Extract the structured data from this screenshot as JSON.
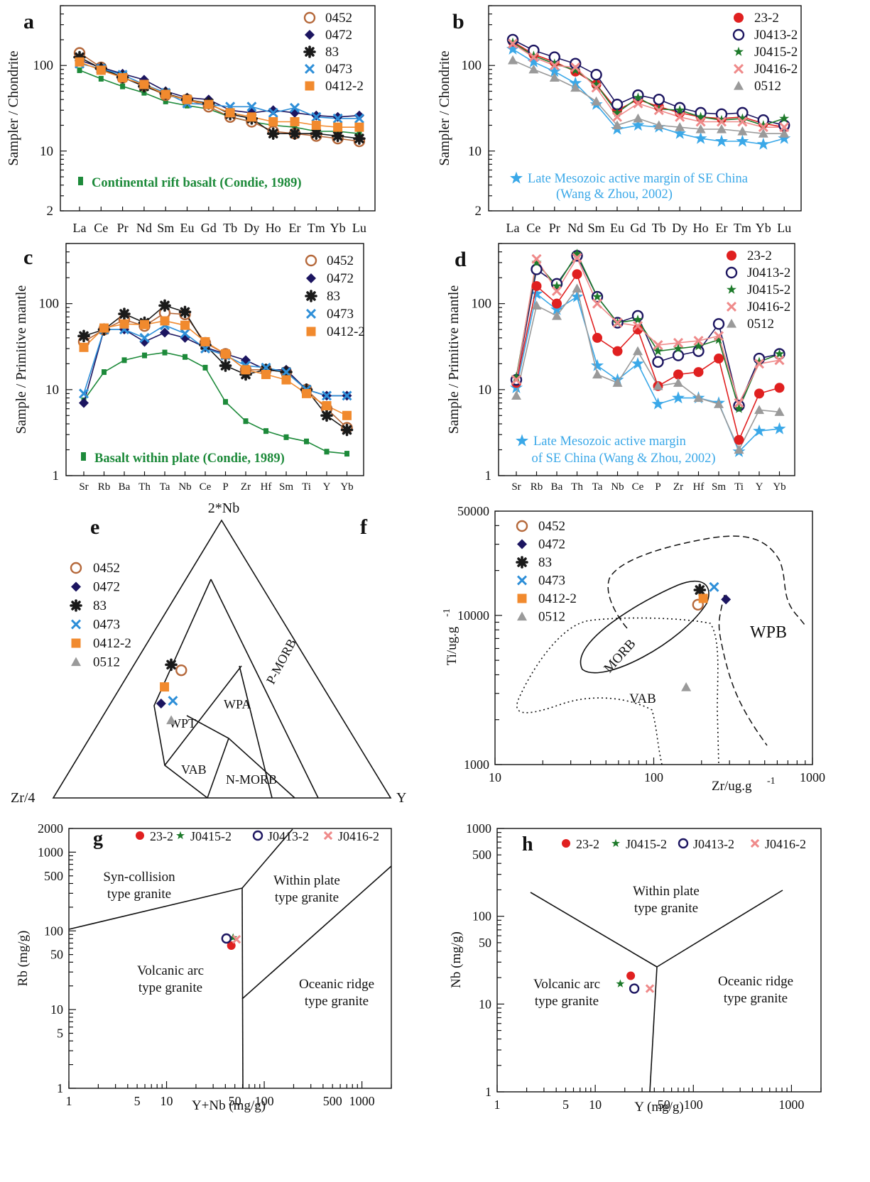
{
  "colors": {
    "s0452": "#b5683a",
    "s0472": "#1c1560",
    "s83": "#1a1a1a",
    "s0473": "#2e8fd8",
    "s0412_2": "#f18a2e",
    "s23_2": "#e02020",
    "sJ0413_2": "#1c1560",
    "sJ0415_2": "#1d7a2a",
    "sJ0416_2": "#ef8a8a",
    "s0512": "#9a9a9a",
    "green_ref": "#1d8a3a",
    "blue_ref": "#3aa8e8"
  },
  "chart_data": [
    {
      "panel": "a",
      "type": "line",
      "log_y": true,
      "ylabel": "Sampler / Chondrite",
      "ylim": [
        2,
        500
      ],
      "yticks": [
        2,
        10,
        100
      ],
      "categories": [
        "La",
        "Ce",
        "Pr",
        "Nd",
        "Sm",
        "Eu",
        "Gd",
        "Tb",
        "Dy",
        "Ho",
        "Er",
        "Tm",
        "Yb",
        "Lu"
      ],
      "series": [
        {
          "name": "0452",
          "marker": "open-circle",
          "color": "#b5683a",
          "values": [
            140,
            95,
            72,
            58,
            45,
            40,
            33,
            25,
            22,
            17,
            16,
            15,
            14,
            13
          ]
        },
        {
          "name": "0472",
          "marker": "diamond",
          "color": "#1c1560",
          "values": [
            115,
            95,
            80,
            68,
            50,
            42,
            40,
            30,
            28,
            30,
            28,
            26,
            25,
            26
          ]
        },
        {
          "name": "83",
          "marker": "burst",
          "color": "#1a1a1a",
          "values": [
            125,
            92,
            73,
            57,
            47,
            40,
            36,
            27,
            24,
            16,
            16,
            16,
            15,
            14
          ]
        },
        {
          "name": "0473",
          "marker": "x",
          "color": "#2e8fd8",
          "values": [
            105,
            92,
            78,
            60,
            48,
            36,
            35,
            33,
            33,
            28,
            32,
            25,
            24,
            24
          ]
        },
        {
          "name": "0412-2",
          "marker": "square",
          "color": "#f18a2e",
          "values": [
            110,
            88,
            72,
            60,
            46,
            40,
            35,
            28,
            25,
            22,
            22,
            20,
            19,
            19
          ]
        }
      ],
      "reference": {
        "name": "Continental rift basalt (Condie, 1989)",
        "color": "#1d8a3a",
        "values": [
          88,
          70,
          57,
          48,
          38,
          34,
          31,
          25,
          22,
          20,
          19,
          17,
          17,
          16
        ]
      }
    },
    {
      "panel": "b",
      "type": "line",
      "log_y": true,
      "ylabel": "Sampler / Chondrite",
      "ylim": [
        2,
        500
      ],
      "yticks": [
        2,
        10,
        100
      ],
      "categories": [
        "La",
        "Ce",
        "Pr",
        "Nd",
        "Sm",
        "Eu",
        "Gd",
        "Tb",
        "Dy",
        "Ho",
        "Er",
        "Tm",
        "Yb",
        "Lu"
      ],
      "series": [
        {
          "name": "23-2",
          "marker": "filled-circle",
          "color": "#e02020",
          "values": [
            190,
            135,
            110,
            85,
            60,
            30,
            40,
            33,
            28,
            25,
            24,
            25,
            21,
            19
          ]
        },
        {
          "name": "J0413-2",
          "marker": "open-circle",
          "color": "#1c1560",
          "values": [
            200,
            150,
            125,
            105,
            78,
            35,
            45,
            40,
            32,
            28,
            27,
            28,
            23,
            20
          ]
        },
        {
          "name": "J0415-2",
          "marker": "star",
          "color": "#1d7a2a",
          "values": [
            185,
            130,
            105,
            88,
            60,
            28,
            42,
            31,
            30,
            25,
            23,
            24,
            20,
            24
          ]
        },
        {
          "name": "J0416-2",
          "marker": "x",
          "color": "#ef8a8a",
          "values": [
            180,
            125,
            100,
            95,
            55,
            25,
            36,
            30,
            25,
            22,
            22,
            22,
            19,
            19
          ]
        },
        {
          "name": "0512",
          "marker": "triangle",
          "color": "#9a9a9a",
          "values": [
            115,
            90,
            72,
            55,
            38,
            20,
            24,
            20,
            19,
            18,
            18,
            17,
            16,
            16
          ]
        }
      ],
      "reference": {
        "name": "Late Mesozoic active margin of SE China",
        "name_line2": "(Wang & Zhou, 2002)",
        "color": "#3aa8e8",
        "values": [
          155,
          110,
          85,
          62,
          35,
          18,
          20,
          19,
          16,
          14,
          13,
          13,
          12,
          14
        ]
      }
    },
    {
      "panel": "c",
      "type": "line",
      "log_y": true,
      "ylabel": "Sample / Primitive mantle",
      "ylim": [
        1,
        500
      ],
      "yticks": [
        1,
        10,
        100
      ],
      "categories": [
        "Sr",
        "Rb",
        "Ba",
        "Th",
        "Ta",
        "Nb",
        "Ce",
        "P",
        "Zr",
        "Hf",
        "Sm",
        "Ti",
        "Y",
        "Yb"
      ],
      "series": [
        {
          "name": "0452",
          "marker": "open-circle",
          "color": "#b5683a",
          "values": [
            36,
            50,
            65,
            55,
            78,
            75,
            35,
            26,
            17,
            17,
            16,
            10,
            6,
            3.6
          ]
        },
        {
          "name": "0472",
          "marker": "diamond",
          "color": "#1c1560",
          "values": [
            7,
            50,
            50,
            36,
            46,
            40,
            31,
            26,
            22,
            17,
            17,
            10,
            8.5,
            8.5
          ]
        },
        {
          "name": "83",
          "marker": "burst",
          "color": "#1a1a1a",
          "values": [
            42,
            50,
            76,
            60,
            95,
            80,
            33,
            19,
            15,
            17,
            16,
            10,
            5,
            3.4
          ]
        },
        {
          "name": "0473",
          "marker": "x",
          "color": "#2e8fd8",
          "values": [
            9,
            50,
            50,
            40,
            56,
            45,
            30,
            25,
            19,
            18,
            16,
            10,
            8.5,
            8.5
          ]
        },
        {
          "name": "0412-2",
          "marker": "square",
          "color": "#f18a2e",
          "values": [
            31,
            52,
            58,
            57,
            63,
            56,
            36,
            26,
            17,
            15,
            13,
            9,
            6.5,
            5
          ]
        }
      ],
      "reference": {
        "name": "Basalt  within plate (Condie, 1989)",
        "color": "#1d8a3a",
        "values": [
          7.5,
          16,
          22,
          25,
          27,
          24,
          18,
          7.2,
          4.3,
          3.3,
          2.8,
          2.5,
          1.9,
          1.8
        ]
      }
    },
    {
      "panel": "d",
      "type": "line",
      "log_y": true,
      "ylabel": "Sample / Primitive mantle",
      "ylim": [
        1,
        500
      ],
      "yticks": [
        1,
        10,
        100
      ],
      "categories": [
        "Sr",
        "Rb",
        "Ba",
        "Th",
        "Ta",
        "Nb",
        "Ce",
        "P",
        "Zr",
        "Hf",
        "Sm",
        "Ti",
        "Y",
        "Yb"
      ],
      "series": [
        {
          "name": "23-2",
          "marker": "filled-circle",
          "color": "#e02020",
          "values": [
            12,
            160,
            100,
            220,
            40,
            28,
            50,
            11,
            15,
            16,
            23,
            2.6,
            9,
            10.5
          ]
        },
        {
          "name": "J0413-2",
          "marker": "open-circle",
          "color": "#1c1560",
          "values": [
            13,
            250,
            170,
            360,
            120,
            60,
            72,
            21,
            25,
            28,
            58,
            6.5,
            23,
            26
          ]
        },
        {
          "name": "J0415-2",
          "marker": "star",
          "color": "#1d7a2a",
          "values": [
            14,
            300,
            160,
            380,
            120,
            60,
            65,
            28,
            30,
            32,
            38,
            6,
            21,
            26
          ]
        },
        {
          "name": "J0416-2",
          "marker": "x",
          "color": "#ef8a8a",
          "values": [
            13,
            330,
            140,
            340,
            100,
            60,
            55,
            33,
            35,
            37,
            42,
            7,
            20,
            22
          ]
        },
        {
          "name": "0512",
          "marker": "triangle",
          "color": "#9a9a9a",
          "values": [
            8.5,
            95,
            72,
            150,
            15,
            12,
            28,
            11,
            12,
            8,
            6.8,
            2,
            5.8,
            5.5
          ]
        }
      ],
      "reference": {
        "name": "Late Mesozoic active margin",
        "name_line2": "of SE China   (Wang & Zhou, 2002)",
        "color": "#3aa8e8",
        "values": [
          10.5,
          130,
          85,
          120,
          19,
          13,
          20,
          6.8,
          8,
          8,
          7,
          1.9,
          3.3,
          3.5
        ]
      }
    },
    {
      "panel": "e",
      "type": "ternary",
      "apex_labels": {
        "top": "2*Nb",
        "left": "Zr/4",
        "right": "Y"
      },
      "fields": [
        "WPT",
        "WPA",
        "P-MORB",
        "VAB",
        "N-MORB"
      ],
      "points": [
        {
          "name": "0452",
          "marker": "open-circle",
          "color": "#b5683a",
          "nb": 0.46,
          "zr": 0.39,
          "y": 0.15
        },
        {
          "name": "0472",
          "marker": "diamond",
          "color": "#1c1560",
          "nb": 0.34,
          "zr": 0.51,
          "y": 0.15
        },
        {
          "name": "83",
          "marker": "burst",
          "color": "#1a1a1a",
          "nb": 0.48,
          "zr": 0.41,
          "y": 0.11
        },
        {
          "name": "0473",
          "marker": "x",
          "color": "#2e8fd8",
          "nb": 0.35,
          "zr": 0.47,
          "y": 0.18
        },
        {
          "name": "0412-2",
          "marker": "square",
          "color": "#f18a2e",
          "nb": 0.4,
          "zr": 0.47,
          "y": 0.13
        },
        {
          "name": "0512",
          "marker": "triangle",
          "color": "#9a9a9a",
          "nb": 0.28,
          "zr": 0.51,
          "y": 0.21
        }
      ],
      "legend": [
        "0452",
        "0472",
        "83",
        "0473",
        "0412-2",
        "0512"
      ]
    },
    {
      "panel": "f",
      "type": "scatter",
      "log_x": true,
      "log_y": true,
      "xlabel": "Zr/ug.g",
      "xlabel_sup": "-1",
      "ylabel": "Ti/ug.g",
      "ylabel_sup": "-1",
      "xlim": [
        10,
        1000
      ],
      "ylim": [
        1000,
        50000
      ],
      "xticks": [
        10,
        100,
        1000
      ],
      "yticks": [
        1000,
        10000,
        50000
      ],
      "fields": [
        "MORB",
        "WPB",
        "VAB"
      ],
      "points": [
        {
          "name": "0452",
          "marker": "open-circle",
          "color": "#b5683a",
          "x": 190,
          "y": 11800
        },
        {
          "name": "0472",
          "marker": "diamond",
          "color": "#1c1560",
          "x": 285,
          "y": 12800
        },
        {
          "name": "83",
          "marker": "burst",
          "color": "#1a1a1a",
          "x": 195,
          "y": 14800
        },
        {
          "name": "0473",
          "marker": "x",
          "color": "#2e8fd8",
          "x": 240,
          "y": 15500
        },
        {
          "name": "0412-2",
          "marker": "square",
          "color": "#f18a2e",
          "x": 205,
          "y": 13000
        },
        {
          "name": "0512",
          "marker": "triangle",
          "color": "#9a9a9a",
          "x": 160,
          "y": 3300
        }
      ]
    },
    {
      "panel": "g",
      "type": "scatter",
      "log_x": true,
      "log_y": true,
      "xlabel": "Y+Nb (mg/g)",
      "ylabel": "Rb (mg/g)",
      "xlim": [
        1,
        2000
      ],
      "ylim": [
        1,
        2000
      ],
      "xticks": [
        1,
        5,
        10,
        50,
        100,
        500,
        1000
      ],
      "yticks": [
        1,
        5,
        10,
        50,
        100,
        500,
        1000,
        2000
      ],
      "fields": [
        {
          "line1": "Syn-collision",
          "line2": "type granite"
        },
        {
          "line1": "Within plate",
          "line2": "type granite"
        },
        {
          "line1": "Volcanic arc",
          "line2": "type granite"
        },
        {
          "line1": "Oceanic ridge",
          "line2": "type granite"
        }
      ],
      "points": [
        {
          "name": "23-2",
          "marker": "filled-circle",
          "color": "#e02020",
          "x": 46,
          "y": 65
        },
        {
          "name": "J0415-2",
          "marker": "star",
          "color": "#1d7a2a",
          "x": 48,
          "y": 82
        },
        {
          "name": "J0413-2",
          "marker": "open-circle",
          "color": "#1c1560",
          "x": 41,
          "y": 80
        },
        {
          "name": "J0416-2",
          "marker": "x",
          "color": "#ef8a8a",
          "x": 52,
          "y": 78
        }
      ],
      "legend": [
        "23-2",
        "J0415-2",
        "J0413-2",
        "J0416-2"
      ]
    },
    {
      "panel": "h",
      "type": "scatter",
      "log_x": true,
      "log_y": true,
      "xlabel": "Y (mg/g)",
      "ylabel": "Nb (mg/g)",
      "xlim": [
        1,
        2000
      ],
      "ylim": [
        1,
        1000
      ],
      "xticks": [
        1,
        5,
        10,
        50,
        100,
        1000
      ],
      "yticks": [
        1,
        10,
        50,
        100,
        500,
        1000
      ],
      "fields": [
        {
          "line1": "Within plate",
          "line2": "type granite"
        },
        {
          "line1": "Volcanic arc",
          "line2": "type granite"
        },
        {
          "line1": "Oceanic ridge",
          "line2": "type granite"
        }
      ],
      "points": [
        {
          "name": "23-2",
          "marker": "filled-circle",
          "color": "#e02020",
          "x": 23,
          "y": 21
        },
        {
          "name": "J0415-2",
          "marker": "star",
          "color": "#1d7a2a",
          "x": 18,
          "y": 17
        },
        {
          "name": "J0413-2",
          "marker": "open-circle",
          "color": "#1c1560",
          "x": 25,
          "y": 15
        },
        {
          "name": "J0416-2",
          "marker": "x",
          "color": "#ef8a8a",
          "x": 36,
          "y": 15
        }
      ],
      "legend": [
        "23-2",
        "J0415-2",
        "J0413-2",
        "J0416-2"
      ]
    }
  ]
}
